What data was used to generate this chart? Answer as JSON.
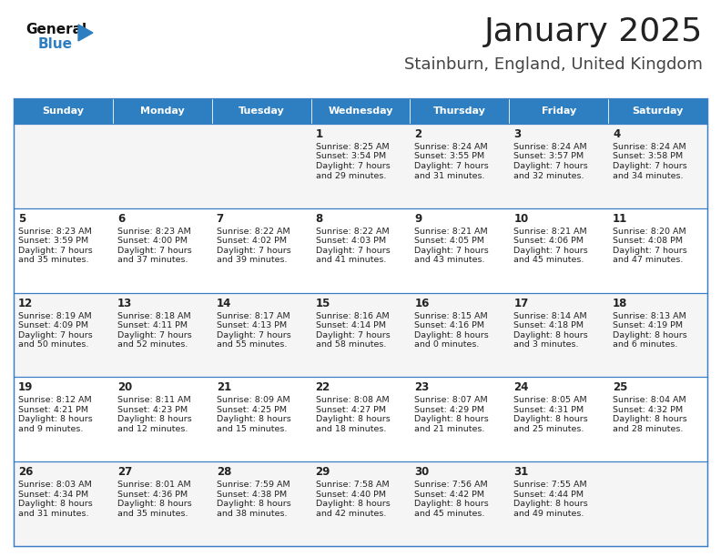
{
  "title": "January 2025",
  "subtitle": "Stainburn, England, United Kingdom",
  "header_bg": "#2E7FC1",
  "header_text": "#FFFFFF",
  "days_of_week": [
    "Sunday",
    "Monday",
    "Tuesday",
    "Wednesday",
    "Thursday",
    "Friday",
    "Saturday"
  ],
  "cell_bg_row0": "#F5F5F5",
  "cell_bg_row1": "#FFFFFF",
  "cell_bg_row2": "#F5F5F5",
  "cell_bg_row3": "#FFFFFF",
  "cell_bg_row4": "#F5F5F5",
  "cell_border": "#3A7EC5",
  "text_color": "#222222",
  "title_color": "#222222",
  "subtitle_color": "#444444",
  "calendar": [
    [
      {
        "day": "",
        "lines": []
      },
      {
        "day": "",
        "lines": []
      },
      {
        "day": "",
        "lines": []
      },
      {
        "day": "1",
        "lines": [
          "Sunrise: 8:25 AM",
          "Sunset: 3:54 PM",
          "Daylight: 7 hours",
          "and 29 minutes."
        ]
      },
      {
        "day": "2",
        "lines": [
          "Sunrise: 8:24 AM",
          "Sunset: 3:55 PM",
          "Daylight: 7 hours",
          "and 31 minutes."
        ]
      },
      {
        "day": "3",
        "lines": [
          "Sunrise: 8:24 AM",
          "Sunset: 3:57 PM",
          "Daylight: 7 hours",
          "and 32 minutes."
        ]
      },
      {
        "day": "4",
        "lines": [
          "Sunrise: 8:24 AM",
          "Sunset: 3:58 PM",
          "Daylight: 7 hours",
          "and 34 minutes."
        ]
      }
    ],
    [
      {
        "day": "5",
        "lines": [
          "Sunrise: 8:23 AM",
          "Sunset: 3:59 PM",
          "Daylight: 7 hours",
          "and 35 minutes."
        ]
      },
      {
        "day": "6",
        "lines": [
          "Sunrise: 8:23 AM",
          "Sunset: 4:00 PM",
          "Daylight: 7 hours",
          "and 37 minutes."
        ]
      },
      {
        "day": "7",
        "lines": [
          "Sunrise: 8:22 AM",
          "Sunset: 4:02 PM",
          "Daylight: 7 hours",
          "and 39 minutes."
        ]
      },
      {
        "day": "8",
        "lines": [
          "Sunrise: 8:22 AM",
          "Sunset: 4:03 PM",
          "Daylight: 7 hours",
          "and 41 minutes."
        ]
      },
      {
        "day": "9",
        "lines": [
          "Sunrise: 8:21 AM",
          "Sunset: 4:05 PM",
          "Daylight: 7 hours",
          "and 43 minutes."
        ]
      },
      {
        "day": "10",
        "lines": [
          "Sunrise: 8:21 AM",
          "Sunset: 4:06 PM",
          "Daylight: 7 hours",
          "and 45 minutes."
        ]
      },
      {
        "day": "11",
        "lines": [
          "Sunrise: 8:20 AM",
          "Sunset: 4:08 PM",
          "Daylight: 7 hours",
          "and 47 minutes."
        ]
      }
    ],
    [
      {
        "day": "12",
        "lines": [
          "Sunrise: 8:19 AM",
          "Sunset: 4:09 PM",
          "Daylight: 7 hours",
          "and 50 minutes."
        ]
      },
      {
        "day": "13",
        "lines": [
          "Sunrise: 8:18 AM",
          "Sunset: 4:11 PM",
          "Daylight: 7 hours",
          "and 52 minutes."
        ]
      },
      {
        "day": "14",
        "lines": [
          "Sunrise: 8:17 AM",
          "Sunset: 4:13 PM",
          "Daylight: 7 hours",
          "and 55 minutes."
        ]
      },
      {
        "day": "15",
        "lines": [
          "Sunrise: 8:16 AM",
          "Sunset: 4:14 PM",
          "Daylight: 7 hours",
          "and 58 minutes."
        ]
      },
      {
        "day": "16",
        "lines": [
          "Sunrise: 8:15 AM",
          "Sunset: 4:16 PM",
          "Daylight: 8 hours",
          "and 0 minutes."
        ]
      },
      {
        "day": "17",
        "lines": [
          "Sunrise: 8:14 AM",
          "Sunset: 4:18 PM",
          "Daylight: 8 hours",
          "and 3 minutes."
        ]
      },
      {
        "day": "18",
        "lines": [
          "Sunrise: 8:13 AM",
          "Sunset: 4:19 PM",
          "Daylight: 8 hours",
          "and 6 minutes."
        ]
      }
    ],
    [
      {
        "day": "19",
        "lines": [
          "Sunrise: 8:12 AM",
          "Sunset: 4:21 PM",
          "Daylight: 8 hours",
          "and 9 minutes."
        ]
      },
      {
        "day": "20",
        "lines": [
          "Sunrise: 8:11 AM",
          "Sunset: 4:23 PM",
          "Daylight: 8 hours",
          "and 12 minutes."
        ]
      },
      {
        "day": "21",
        "lines": [
          "Sunrise: 8:09 AM",
          "Sunset: 4:25 PM",
          "Daylight: 8 hours",
          "and 15 minutes."
        ]
      },
      {
        "day": "22",
        "lines": [
          "Sunrise: 8:08 AM",
          "Sunset: 4:27 PM",
          "Daylight: 8 hours",
          "and 18 minutes."
        ]
      },
      {
        "day": "23",
        "lines": [
          "Sunrise: 8:07 AM",
          "Sunset: 4:29 PM",
          "Daylight: 8 hours",
          "and 21 minutes."
        ]
      },
      {
        "day": "24",
        "lines": [
          "Sunrise: 8:05 AM",
          "Sunset: 4:31 PM",
          "Daylight: 8 hours",
          "and 25 minutes."
        ]
      },
      {
        "day": "25",
        "lines": [
          "Sunrise: 8:04 AM",
          "Sunset: 4:32 PM",
          "Daylight: 8 hours",
          "and 28 minutes."
        ]
      }
    ],
    [
      {
        "day": "26",
        "lines": [
          "Sunrise: 8:03 AM",
          "Sunset: 4:34 PM",
          "Daylight: 8 hours",
          "and 31 minutes."
        ]
      },
      {
        "day": "27",
        "lines": [
          "Sunrise: 8:01 AM",
          "Sunset: 4:36 PM",
          "Daylight: 8 hours",
          "and 35 minutes."
        ]
      },
      {
        "day": "28",
        "lines": [
          "Sunrise: 7:59 AM",
          "Sunset: 4:38 PM",
          "Daylight: 8 hours",
          "and 38 minutes."
        ]
      },
      {
        "day": "29",
        "lines": [
          "Sunrise: 7:58 AM",
          "Sunset: 4:40 PM",
          "Daylight: 8 hours",
          "and 42 minutes."
        ]
      },
      {
        "day": "30",
        "lines": [
          "Sunrise: 7:56 AM",
          "Sunset: 4:42 PM",
          "Daylight: 8 hours",
          "and 45 minutes."
        ]
      },
      {
        "day": "31",
        "lines": [
          "Sunrise: 7:55 AM",
          "Sunset: 4:44 PM",
          "Daylight: 8 hours",
          "and 49 minutes."
        ]
      },
      {
        "day": "",
        "lines": []
      }
    ]
  ],
  "fig_width": 7.92,
  "fig_height": 6.12,
  "dpi": 100
}
